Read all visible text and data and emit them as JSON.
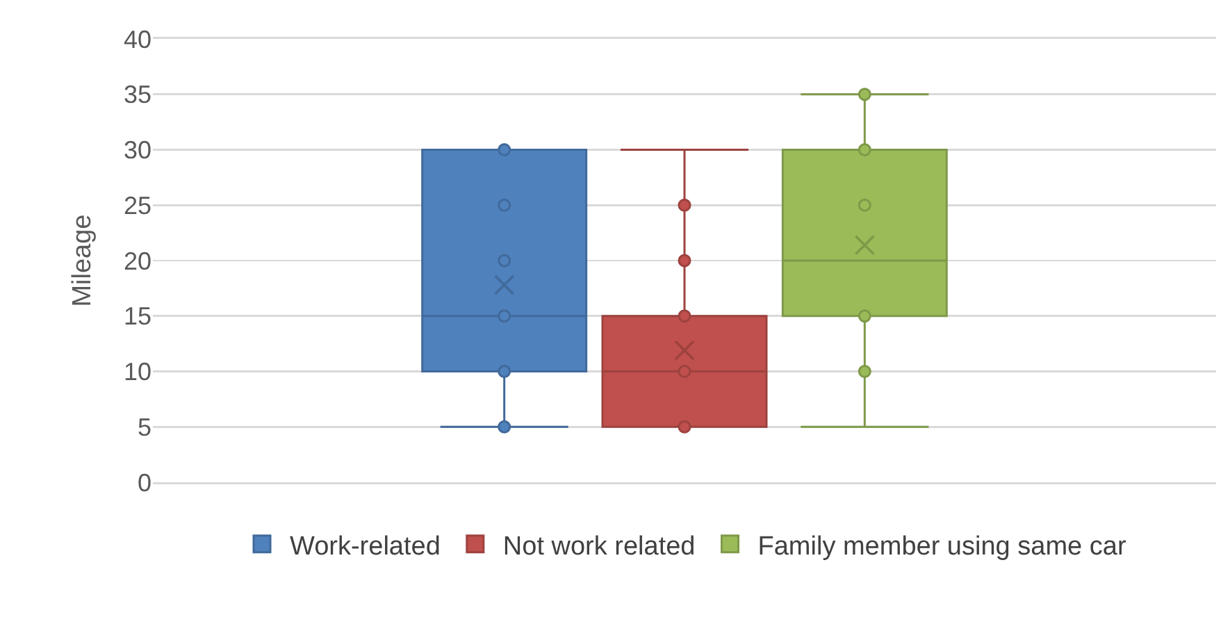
{
  "chart_data": {
    "type": "box",
    "ylabel": "Mileage",
    "categories": [
      null
    ],
    "ylim": [
      0,
      40
    ],
    "yticks": [
      0,
      5,
      10,
      15,
      20,
      25,
      30,
      35,
      40
    ],
    "grid": "y",
    "legend": "bottom",
    "marker": "circle",
    "series": [
      {
        "name": "Work-related",
        "color": "#4f81bd",
        "boxes": [
          {
            "low": 5,
            "q1": 10,
            "median": 15,
            "q3": 30,
            "high": 30,
            "mean": 17.8,
            "outliers": [
              5,
              10,
              15,
              20,
              25,
              30
            ]
          }
        ]
      },
      {
        "name": "Not work related",
        "color": "#c0504d",
        "boxes": [
          {
            "low": 5,
            "q1": 5,
            "median": 10,
            "q3": 15,
            "high": 30,
            "mean": 11.9,
            "outliers": [
              5,
              10,
              15,
              20,
              25
            ]
          }
        ]
      },
      {
        "name": "Family member using same car",
        "color": "#9bbb59",
        "boxes": [
          {
            "low": 5,
            "q1": 15,
            "median": 20,
            "q3": 30,
            "high": 35,
            "mean": 21.4,
            "outliers": [
              10,
              15,
              25,
              30,
              35
            ]
          }
        ]
      }
    ]
  }
}
